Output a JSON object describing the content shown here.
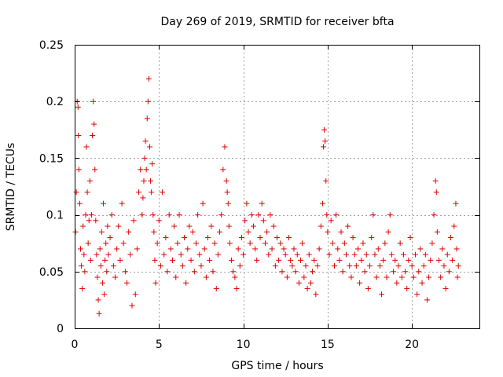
{
  "chart_data": {
    "type": "scatter",
    "title": "Day 269 of 2019, SRMTID for receiver bfta",
    "xlabel": "GPS time / hours",
    "ylabel": "SRMTID / TECUs",
    "xlim": [
      0,
      24
    ],
    "ylim": [
      0,
      0.25
    ],
    "grid": true,
    "marker": "+",
    "color": "#e00000",
    "x_ticks": [
      0,
      5,
      10,
      15,
      20
    ],
    "x_tick_labels": [
      "0",
      "5",
      "10",
      "15",
      "20"
    ],
    "y_ticks": [
      0,
      0.05,
      0.1,
      0.15,
      0.2,
      0.25
    ],
    "y_tick_labels": [
      "0",
      "0.05",
      "0.1",
      "0.15",
      "0.2",
      "0.25"
    ],
    "series": [
      {
        "points": [
          [
            0.05,
            0.085
          ],
          [
            0.1,
            0.12
          ],
          [
            0.15,
            0.2
          ],
          [
            0.2,
            0.195
          ],
          [
            0.22,
            0.17
          ],
          [
            0.25,
            0.14
          ],
          [
            0.3,
            0.11
          ],
          [
            0.35,
            0.07
          ],
          [
            0.4,
            0.055
          ],
          [
            0.45,
            0.035
          ],
          [
            0.5,
            0.09
          ],
          [
            0.55,
            0.065
          ],
          [
            0.6,
            0.05
          ],
          [
            0.65,
            0.1
          ],
          [
            0.7,
            0.16
          ],
          [
            0.75,
            0.12
          ],
          [
            0.8,
            0.075
          ],
          [
            0.85,
            0.095
          ],
          [
            0.9,
            0.13
          ],
          [
            0.95,
            0.06
          ],
          [
            1.0,
            0.1
          ],
          [
            1.05,
            0.17
          ],
          [
            1.1,
            0.2
          ],
          [
            1.15,
            0.18
          ],
          [
            1.2,
            0.14
          ],
          [
            1.25,
            0.095
          ],
          [
            1.3,
            0.065
          ],
          [
            1.35,
            0.045
          ],
          [
            1.4,
            0.025
          ],
          [
            1.45,
            0.013
          ],
          [
            1.5,
            0.07
          ],
          [
            1.55,
            0.055
          ],
          [
            1.6,
            0.085
          ],
          [
            1.65,
            0.04
          ],
          [
            1.7,
            0.11
          ],
          [
            1.75,
            0.03
          ],
          [
            1.8,
            0.06
          ],
          [
            1.85,
            0.075
          ],
          [
            1.9,
            0.05
          ],
          [
            1.95,
            0.09
          ],
          [
            2.0,
            0.065
          ],
          [
            2.1,
            0.08
          ],
          [
            2.2,
            0.1
          ],
          [
            2.3,
            0.055
          ],
          [
            2.4,
            0.045
          ],
          [
            2.5,
            0.07
          ],
          [
            2.6,
            0.09
          ],
          [
            2.7,
            0.06
          ],
          [
            2.8,
            0.11
          ],
          [
            2.9,
            0.075
          ],
          [
            3.0,
            0.05
          ],
          [
            3.1,
            0.04
          ],
          [
            3.2,
            0.085
          ],
          [
            3.3,
            0.065
          ],
          [
            3.4,
            0.02
          ],
          [
            3.5,
            0.095
          ],
          [
            3.6,
            0.03
          ],
          [
            3.7,
            0.07
          ],
          [
            3.8,
            0.12
          ],
          [
            3.9,
            0.14
          ],
          [
            4.0,
            0.1
          ],
          [
            4.05,
            0.115
          ],
          [
            4.1,
            0.13
          ],
          [
            4.15,
            0.15
          ],
          [
            4.2,
            0.165
          ],
          [
            4.25,
            0.14
          ],
          [
            4.3,
            0.185
          ],
          [
            4.35,
            0.2
          ],
          [
            4.4,
            0.22
          ],
          [
            4.45,
            0.16
          ],
          [
            4.5,
            0.13
          ],
          [
            4.55,
            0.12
          ],
          [
            4.6,
            0.145
          ],
          [
            4.65,
            0.1
          ],
          [
            4.7,
            0.085
          ],
          [
            4.75,
            0.06
          ],
          [
            4.8,
            0.04
          ],
          [
            4.9,
            0.075
          ],
          [
            5.0,
            0.095
          ],
          [
            5.1,
            0.055
          ],
          [
            5.2,
            0.12
          ],
          [
            5.3,
            0.065
          ],
          [
            5.4,
            0.08
          ],
          [
            5.5,
            0.05
          ],
          [
            5.6,
            0.1
          ],
          [
            5.7,
            0.07
          ],
          [
            5.8,
            0.06
          ],
          [
            5.9,
            0.09
          ],
          [
            6.0,
            0.045
          ],
          [
            6.1,
            0.075
          ],
          [
            6.2,
            0.1
          ],
          [
            6.3,
            0.065
          ],
          [
            6.4,
            0.055
          ],
          [
            6.5,
            0.08
          ],
          [
            6.6,
            0.04
          ],
          [
            6.7,
            0.07
          ],
          [
            6.8,
            0.09
          ],
          [
            6.9,
            0.06
          ],
          [
            7.0,
            0.085
          ],
          [
            7.1,
            0.05
          ],
          [
            7.2,
            0.075
          ],
          [
            7.3,
            0.1
          ],
          [
            7.4,
            0.065
          ],
          [
            7.5,
            0.055
          ],
          [
            7.6,
            0.11
          ],
          [
            7.7,
            0.07
          ],
          [
            7.8,
            0.045
          ],
          [
            7.9,
            0.08
          ],
          [
            8.0,
            0.06
          ],
          [
            8.1,
            0.09
          ],
          [
            8.2,
            0.05
          ],
          [
            8.3,
            0.075
          ],
          [
            8.4,
            0.035
          ],
          [
            8.5,
            0.065
          ],
          [
            8.6,
            0.085
          ],
          [
            8.7,
            0.1
          ],
          [
            8.8,
            0.14
          ],
          [
            8.9,
            0.16
          ],
          [
            9.0,
            0.13
          ],
          [
            9.05,
            0.12
          ],
          [
            9.1,
            0.11
          ],
          [
            9.15,
            0.09
          ],
          [
            9.2,
            0.075
          ],
          [
            9.3,
            0.06
          ],
          [
            9.4,
            0.05
          ],
          [
            9.5,
            0.045
          ],
          [
            9.6,
            0.035
          ],
          [
            9.7,
            0.07
          ],
          [
            9.8,
            0.055
          ],
          [
            9.9,
            0.08
          ],
          [
            10.0,
            0.065
          ],
          [
            10.1,
            0.095
          ],
          [
            10.2,
            0.11
          ],
          [
            10.3,
            0.085
          ],
          [
            10.4,
            0.075
          ],
          [
            10.5,
            0.1
          ],
          [
            10.6,
            0.09
          ],
          [
            10.7,
            0.07
          ],
          [
            10.8,
            0.06
          ],
          [
            10.9,
            0.1
          ],
          [
            11.0,
            0.08
          ],
          [
            11.1,
            0.11
          ],
          [
            11.2,
            0.095
          ],
          [
            11.3,
            0.075
          ],
          [
            11.4,
            0.085
          ],
          [
            11.5,
            0.065
          ],
          [
            11.6,
            0.1
          ],
          [
            11.7,
            0.07
          ],
          [
            11.8,
            0.09
          ],
          [
            11.9,
            0.055
          ],
          [
            12.0,
            0.08
          ],
          [
            12.1,
            0.06
          ],
          [
            12.2,
            0.075
          ],
          [
            12.3,
            0.05
          ],
          [
            12.4,
            0.07
          ],
          [
            12.5,
            0.065
          ],
          [
            12.6,
            0.045
          ],
          [
            12.7,
            0.08
          ],
          [
            12.8,
            0.06
          ],
          [
            12.9,
            0.055
          ],
          [
            13.0,
            0.07
          ],
          [
            13.1,
            0.05
          ],
          [
            13.2,
            0.065
          ],
          [
            13.3,
            0.04
          ],
          [
            13.4,
            0.06
          ],
          [
            13.5,
            0.075
          ],
          [
            13.6,
            0.045
          ],
          [
            13.7,
            0.055
          ],
          [
            13.8,
            0.035
          ],
          [
            13.9,
            0.065
          ],
          [
            14.0,
            0.04
          ],
          [
            14.1,
            0.05
          ],
          [
            14.2,
            0.06
          ],
          [
            14.3,
            0.03
          ],
          [
            14.4,
            0.055
          ],
          [
            14.5,
            0.07
          ],
          [
            14.6,
            0.09
          ],
          [
            14.7,
            0.11
          ],
          [
            14.75,
            0.16
          ],
          [
            14.8,
            0.175
          ],
          [
            14.85,
            0.165
          ],
          [
            14.9,
            0.13
          ],
          [
            14.95,
            0.1
          ],
          [
            15.0,
            0.085
          ],
          [
            15.1,
            0.065
          ],
          [
            15.2,
            0.095
          ],
          [
            15.3,
            0.075
          ],
          [
            15.4,
            0.055
          ],
          [
            15.5,
            0.1
          ],
          [
            15.6,
            0.07
          ],
          [
            15.7,
            0.06
          ],
          [
            15.8,
            0.085
          ],
          [
            15.9,
            0.05
          ],
          [
            16.0,
            0.075
          ],
          [
            16.1,
            0.065
          ],
          [
            16.2,
            0.09
          ],
          [
            16.3,
            0.055
          ],
          [
            16.4,
            0.045
          ],
          [
            16.5,
            0.08
          ],
          [
            16.6,
            0.065
          ],
          [
            16.7,
            0.055
          ],
          [
            16.8,
            0.07
          ],
          [
            16.9,
            0.04
          ],
          [
            17.0,
            0.06
          ],
          [
            17.1,
            0.075
          ],
          [
            17.2,
            0.05
          ],
          [
            17.3,
            0.065
          ],
          [
            17.4,
            0.035
          ],
          [
            17.5,
            0.055
          ],
          [
            17.6,
            0.08
          ],
          [
            17.7,
            0.1
          ],
          [
            17.8,
            0.065
          ],
          [
            17.9,
            0.045
          ],
          [
            18.0,
            0.07
          ],
          [
            18.1,
            0.055
          ],
          [
            18.2,
            0.03
          ],
          [
            18.3,
            0.06
          ],
          [
            18.4,
            0.075
          ],
          [
            18.5,
            0.045
          ],
          [
            18.6,
            0.085
          ],
          [
            18.7,
            0.1
          ],
          [
            18.8,
            0.065
          ],
          [
            18.9,
            0.05
          ],
          [
            19.0,
            0.06
          ],
          [
            19.1,
            0.04
          ],
          [
            19.2,
            0.055
          ],
          [
            19.3,
            0.075
          ],
          [
            19.4,
            0.045
          ],
          [
            19.5,
            0.065
          ],
          [
            19.6,
            0.05
          ],
          [
            19.7,
            0.035
          ],
          [
            19.8,
            0.06
          ],
          [
            19.9,
            0.08
          ],
          [
            20.0,
            0.055
          ],
          [
            20.1,
            0.045
          ],
          [
            20.2,
            0.065
          ],
          [
            20.3,
            0.03
          ],
          [
            20.4,
            0.05
          ],
          [
            20.5,
            0.07
          ],
          [
            20.6,
            0.04
          ],
          [
            20.7,
            0.055
          ],
          [
            20.8,
            0.065
          ],
          [
            20.9,
            0.025
          ],
          [
            21.0,
            0.045
          ],
          [
            21.1,
            0.06
          ],
          [
            21.2,
            0.075
          ],
          [
            21.3,
            0.1
          ],
          [
            21.4,
            0.13
          ],
          [
            21.45,
            0.12
          ],
          [
            21.5,
            0.085
          ],
          [
            21.6,
            0.06
          ],
          [
            21.7,
            0.045
          ],
          [
            21.8,
            0.07
          ],
          [
            21.9,
            0.055
          ],
          [
            22.0,
            0.035
          ],
          [
            22.1,
            0.065
          ],
          [
            22.2,
            0.05
          ],
          [
            22.3,
            0.08
          ],
          [
            22.4,
            0.06
          ],
          [
            22.5,
            0.09
          ],
          [
            22.6,
            0.11
          ],
          [
            22.65,
            0.07
          ],
          [
            22.7,
            0.045
          ],
          [
            22.75,
            0.055
          ]
        ]
      }
    ]
  }
}
